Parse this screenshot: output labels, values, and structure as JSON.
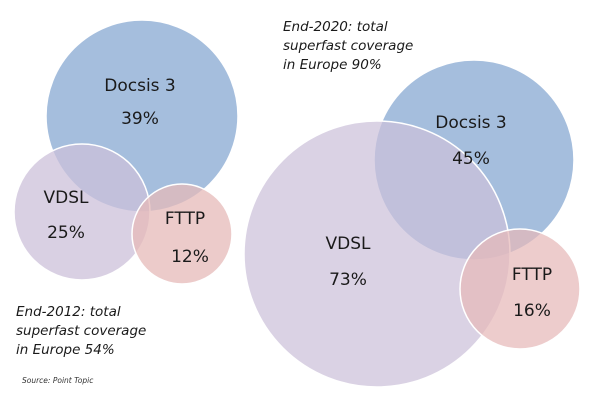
{
  "colors": {
    "docsis": "#95b3d7",
    "vdsl": "#ccc0da",
    "fttp": "#e6b9b8"
  },
  "diagram_2012": {
    "caption_lines": [
      "End-2012: total",
      "superfast coverage",
      "in Europe 54%"
    ],
    "sets": [
      {
        "name": "Docsis 3",
        "value": "39%"
      },
      {
        "name": "VDSL",
        "value": "25%"
      },
      {
        "name": "FTTP",
        "value": "12%"
      }
    ]
  },
  "diagram_2020": {
    "caption_lines": [
      "End-2020: total",
      "superfast coverage",
      "in Europe 90%"
    ],
    "sets": [
      {
        "name": "Docsis 3",
        "value": "45%"
      },
      {
        "name": "VDSL",
        "value": "73%"
      },
      {
        "name": "FTTP",
        "value": "16%"
      }
    ]
  },
  "source": "Source: Point Topic"
}
